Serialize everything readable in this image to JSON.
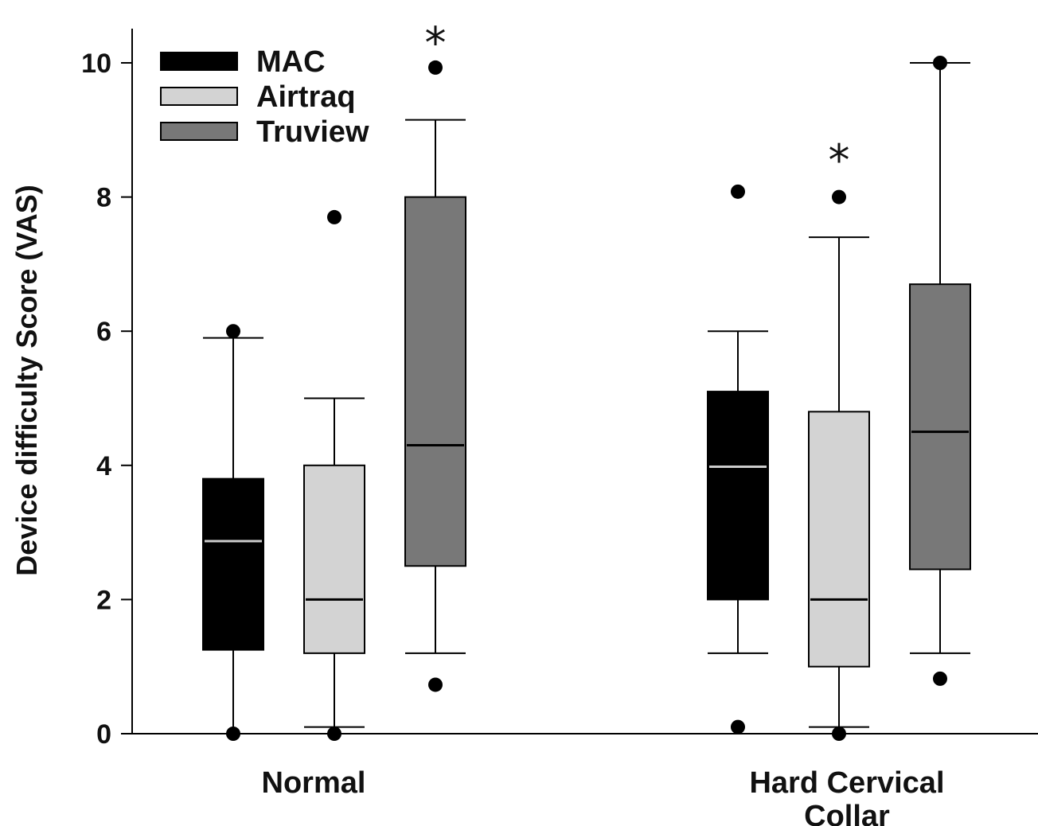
{
  "chart_data": {
    "type": "box",
    "ylabel": "Device difficulty Score (VAS)",
    "ylim": [
      0,
      10.5
    ],
    "yticks": [
      0,
      2,
      4,
      6,
      8,
      10
    ],
    "categories": [
      "Normal",
      "Hard Cervical Collar"
    ],
    "grid": false,
    "legend_position": "top-left",
    "series": [
      {
        "name": "MAC",
        "color": "#000000",
        "median_color": "#cccccc",
        "boxes": [
          {
            "whisker_low": 0,
            "q1": 1.25,
            "median": 2.87,
            "q3": 3.8,
            "whisker_high": 5.9,
            "outliers": [
              0,
              6
            ]
          },
          {
            "whisker_low": 1.2,
            "q1": 2,
            "median": 3.98,
            "q3": 5.1,
            "whisker_high": 6,
            "outliers": [
              0.1,
              8.08
            ]
          }
        ]
      },
      {
        "name": "Airtraq",
        "color": "#d3d3d3",
        "median_color": "#000000",
        "boxes": [
          {
            "whisker_low": 0.1,
            "q1": 1.2,
            "median": 2,
            "q3": 4,
            "whisker_high": 5,
            "outliers": [
              0,
              7.7
            ]
          },
          {
            "whisker_low": 0.1,
            "q1": 1,
            "median": 2,
            "q3": 4.8,
            "whisker_high": 7.4,
            "outliers": [
              0,
              8
            ]
          }
        ]
      },
      {
        "name": "Truview",
        "color": "#787878",
        "median_color": "#000000",
        "boxes": [
          {
            "whisker_low": 1.2,
            "q1": 2.5,
            "median": 4.3,
            "q3": 8,
            "whisker_high": 9.15,
            "outliers": [
              0.73,
              9.93
            ]
          },
          {
            "whisker_low": 1.2,
            "q1": 2.45,
            "median": 4.5,
            "q3": 6.7,
            "whisker_high": 10,
            "outliers": [
              0.82,
              10
            ]
          }
        ]
      }
    ],
    "annotations": [
      {
        "text": "*",
        "category": 0,
        "series": 2,
        "y": 10.55
      },
      {
        "text": "*",
        "category": 1,
        "series": 1,
        "y": 8.8
      }
    ]
  }
}
